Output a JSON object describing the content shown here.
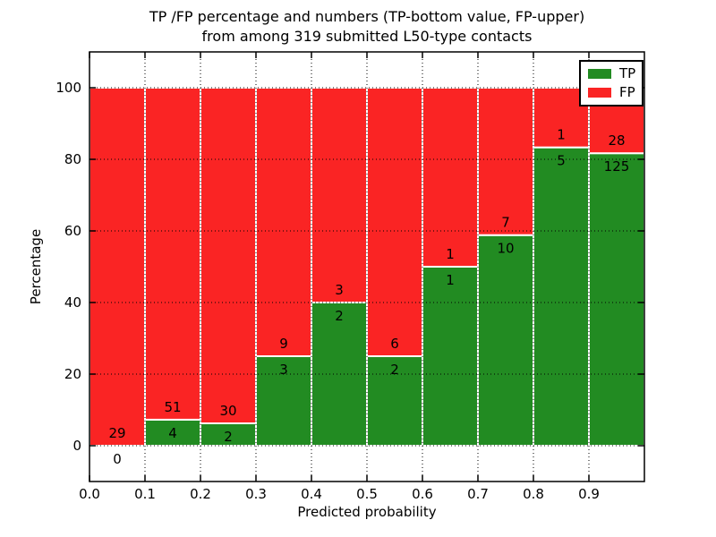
{
  "figure": {
    "title_line1": "TP /FP percentage and numbers (TP-bottom value, FP-upper)",
    "title_line2": "from among 319 submitted L50-type contacts",
    "xlabel": "Predicted probability",
    "ylabel": "Percentage"
  },
  "legend": {
    "position": "upper-right",
    "entries": [
      {
        "label": "TP",
        "color": "#228b22"
      },
      {
        "label": "FP",
        "color": "#fa2424"
      }
    ]
  },
  "chart_data": {
    "type": "bar",
    "stacked": true,
    "normalization": "percent-of-bin-total",
    "title": "TP /FP percentage and numbers (TP-bottom value, FP-upper) from among 319 submitted L50-type contacts",
    "xlabel": "Predicted probability",
    "ylabel": "Percentage",
    "total_contacts": 319,
    "bin_width": 0.1,
    "bin_left_edges": [
      0.0,
      0.1,
      0.2,
      0.3,
      0.4,
      0.5,
      0.6,
      0.7,
      0.8,
      0.9
    ],
    "series": [
      {
        "name": "TP",
        "color": "#228b22",
        "counts": [
          0,
          4,
          2,
          3,
          2,
          2,
          1,
          10,
          5,
          125
        ]
      },
      {
        "name": "FP",
        "color": "#fa2424",
        "counts": [
          29,
          51,
          30,
          9,
          3,
          6,
          1,
          7,
          1,
          28
        ]
      }
    ],
    "tp_percent_by_bin": [
      0.0,
      7.3,
      6.3,
      25.0,
      40.0,
      25.0,
      50.0,
      58.8,
      83.3,
      81.7
    ],
    "xticks": [
      "0.0",
      "0.1",
      "0.2",
      "0.3",
      "0.4",
      "0.5",
      "0.6",
      "0.7",
      "0.8",
      "0.9"
    ],
    "yticks": [
      0,
      20,
      40,
      60,
      80,
      100
    ],
    "xlim": [
      0.0,
      1.0
    ],
    "ylim": [
      -10,
      110
    ],
    "grid": "dotted-black-both-axes",
    "bar_edge_color": "#ffffff",
    "legend_position": "upper right"
  }
}
